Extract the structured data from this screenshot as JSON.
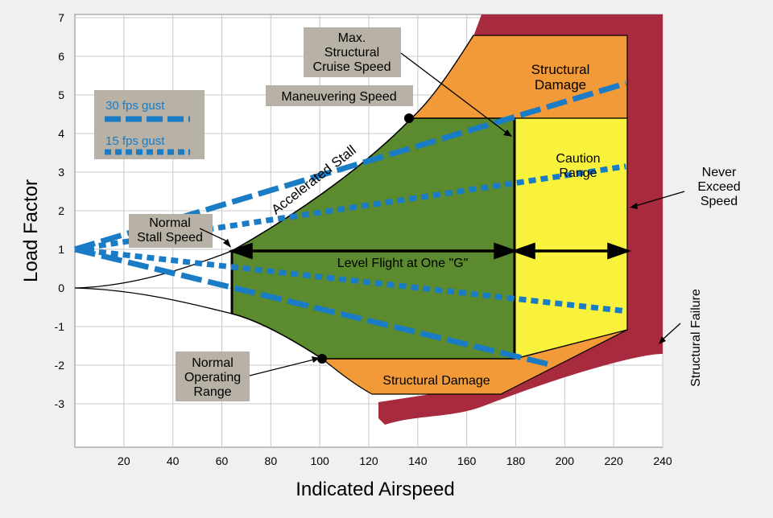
{
  "chart_data": {
    "type": "diagram",
    "xlabel": "Indicated Airspeed",
    "ylabel": "Load Factor",
    "xlim": [
      0,
      240
    ],
    "ylim": [
      -4,
      7
    ],
    "x_ticks": [
      20,
      40,
      60,
      80,
      100,
      120,
      140,
      160,
      180,
      200,
      220,
      240
    ],
    "y_ticks": [
      7,
      6,
      5,
      4,
      3,
      2,
      1,
      0,
      -1,
      -2,
      -3
    ],
    "grid": true,
    "regions": {
      "normal_operating": "Normal Operating Range",
      "caution": "Caution Range",
      "damage_top": "Structural Damage",
      "damage_bottom": "Structural Damage",
      "failure": "Structural Failure"
    },
    "labels": {
      "max_cruise": "Max. Structural Cruise Speed",
      "maneuvering": "Maneuvering Speed",
      "accel_stall": "Accelerated Stall",
      "normal_stall": "Normal Stall Speed",
      "never_exceed": "Never Exceed Speed",
      "level_flight": "Level Flight at One \"G\""
    },
    "legend": {
      "gust30": "30 fps gust",
      "gust15": "15 fps gust"
    },
    "points": {
      "maneuvering_speed": [
        136,
        4.4
      ],
      "normal_operating_point": [
        101,
        -1.75
      ],
      "normal_stall_speed": [
        64,
        1
      ]
    },
    "speeds": {
      "stall": 64,
      "max_cruise": 179,
      "never_exceed": 225
    },
    "gust_lines": {
      "origin": [
        0,
        1
      ],
      "gust30_up": [
        225,
        5.3
      ],
      "gust30_down": [
        195,
        -2.0
      ],
      "gust15_up": [
        225,
        3.15
      ],
      "gust15_down": [
        225,
        -0.6
      ]
    },
    "colors": {
      "green": "#5b8a2f",
      "yellow": "#f8f23c",
      "orange": "#f29a38",
      "red": "#a82a3e",
      "gust": "#1a7cc4",
      "label_box": "#b8b1a5"
    }
  }
}
